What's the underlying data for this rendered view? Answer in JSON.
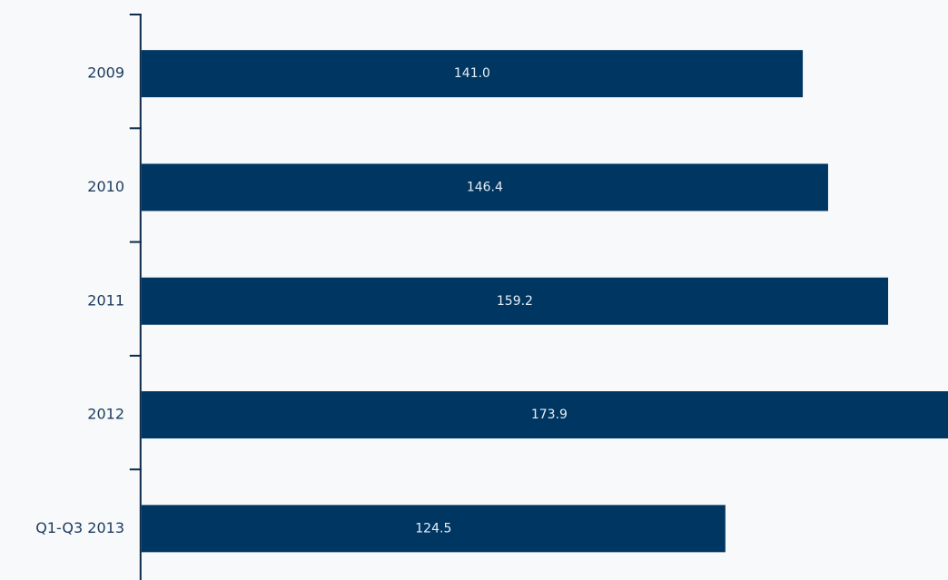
{
  "chart_data": {
    "type": "barh",
    "categories": [
      "2009",
      "2010",
      "2011",
      "2012",
      "Q1-Q3 2013"
    ],
    "values": [
      141.0,
      146.4,
      159.2,
      173.9,
      124.5
    ],
    "value_labels": [
      "141.0",
      "146.4",
      "159.2",
      "173.9",
      "124.5"
    ],
    "color": "#003662"
  }
}
